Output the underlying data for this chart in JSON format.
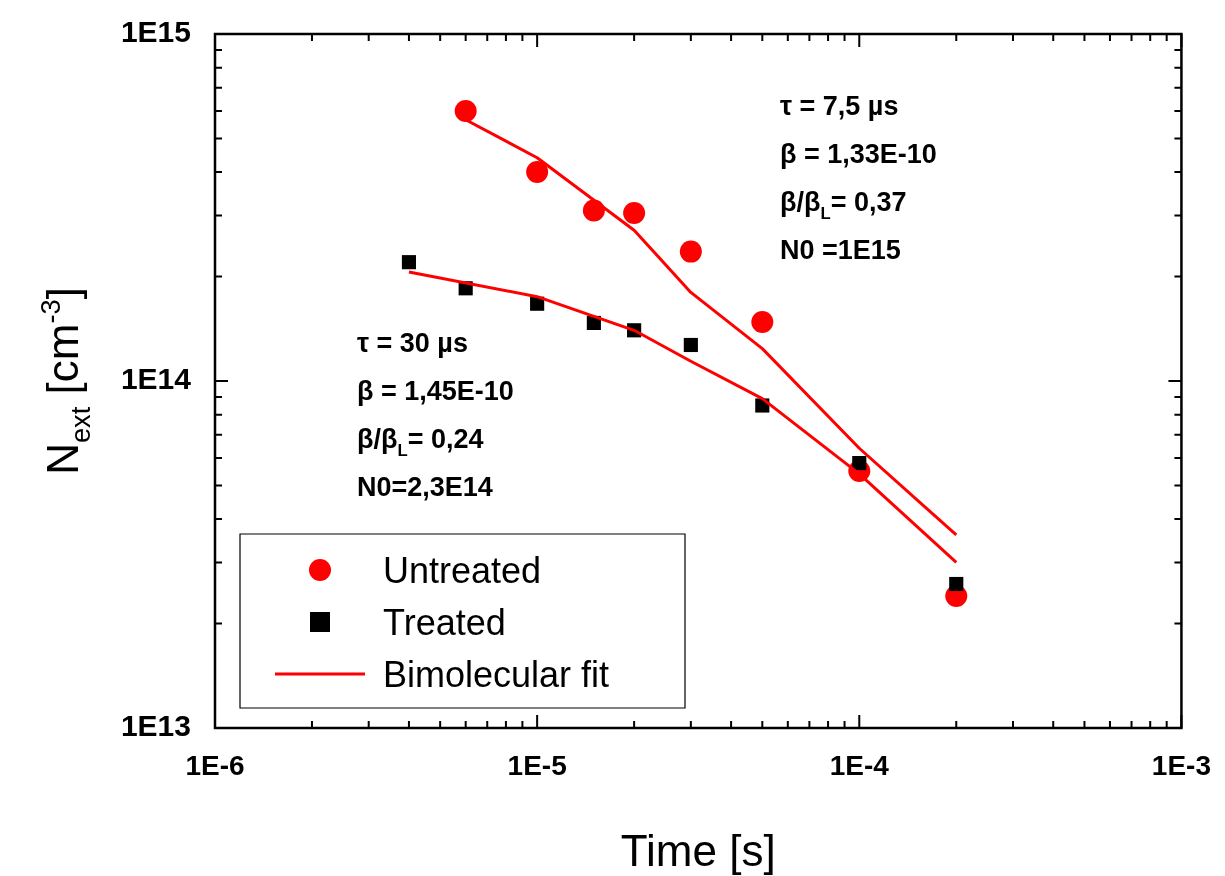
{
  "chart_data": {
    "type": "scatter",
    "xlabel": "Time [s]",
    "ylabel": "N$_{ext}$ [cm$^{-3}$]",
    "log": "xy",
    "grid": false,
    "legend": "bottom left",
    "xlim": [
      1e-06,
      0.001
    ],
    "ylim": [
      10000000000000.0,
      1000000000000000.0
    ],
    "xticks": [
      {
        "value": 1e-06,
        "label": "1E-6"
      },
      {
        "value": 2e-06,
        "label": null
      },
      {
        "value": 3e-06,
        "label": null
      },
      {
        "value": 4e-06,
        "label": null
      },
      {
        "value": 5e-06,
        "label": null
      },
      {
        "value": 6e-06,
        "label": null
      },
      {
        "value": 7e-06,
        "label": null
      },
      {
        "value": 8e-06,
        "label": null
      },
      {
        "value": 9e-06,
        "label": null
      },
      {
        "value": 1e-05,
        "label": "1E-5"
      },
      {
        "value": 2e-05,
        "label": null
      },
      {
        "value": 3e-05,
        "label": null
      },
      {
        "value": 4e-05,
        "label": null
      },
      {
        "value": 5e-05,
        "label": null
      },
      {
        "value": 6e-05,
        "label": null
      },
      {
        "value": 7e-05,
        "label": null
      },
      {
        "value": 8e-05,
        "label": null
      },
      {
        "value": 9e-05,
        "label": null
      },
      {
        "value": 0.0001,
        "label": "1E-4"
      },
      {
        "value": 0.0002,
        "label": null
      },
      {
        "value": 0.0003,
        "label": null
      },
      {
        "value": 0.0004,
        "label": null
      },
      {
        "value": 0.0005,
        "label": null
      },
      {
        "value": 0.0006,
        "label": null
      },
      {
        "value": 0.0007,
        "label": null
      },
      {
        "value": 0.0008,
        "label": null
      },
      {
        "value": 0.0009,
        "label": null
      },
      {
        "value": 0.001,
        "label": "1E-3"
      }
    ],
    "yticks": [
      {
        "value": 10000000000000.0,
        "label": "1E13"
      },
      {
        "value": 20000000000000.0,
        "label": null
      },
      {
        "value": 30000000000000.0,
        "label": null
      },
      {
        "value": 40000000000000.0,
        "label": null
      },
      {
        "value": 50000000000000.0,
        "label": null
      },
      {
        "value": 60000000000000.0,
        "label": null
      },
      {
        "value": 70000000000000.0,
        "label": null
      },
      {
        "value": 80000000000000.0,
        "label": null
      },
      {
        "value": 90000000000000.0,
        "label": null
      },
      {
        "value": 100000000000000.0,
        "label": "1E14"
      },
      {
        "value": 200000000000000.0,
        "label": null
      },
      {
        "value": 300000000000000.0,
        "label": null
      },
      {
        "value": 400000000000000.0,
        "label": null
      },
      {
        "value": 500000000000000.0,
        "label": null
      },
      {
        "value": 600000000000000.0,
        "label": null
      },
      {
        "value": 700000000000000.0,
        "label": null
      },
      {
        "value": 800000000000000.0,
        "label": null
      },
      {
        "value": 900000000000000.0,
        "label": null
      },
      {
        "value": 1000000000000000.0,
        "label": "1E15"
      }
    ],
    "series": [
      {
        "name": "Untreated",
        "type": "scatter",
        "marker": "circle",
        "color": "#ff0000",
        "x": [
          6e-06,
          1e-05,
          1.5e-05,
          2e-05,
          3e-05,
          5e-05,
          0.0001,
          0.0002
        ],
        "values": [
          600000000000000.0,
          400000000000000.0,
          310000000000000.0,
          305000000000000.0,
          236000000000000.0,
          148000000000000.0,
          55000000000000.0,
          24000000000000.0
        ]
      },
      {
        "name": "Treated",
        "type": "scatter",
        "marker": "square",
        "color": "#000000",
        "x": [
          4e-06,
          6e-06,
          1e-05,
          1.5e-05,
          2e-05,
          3e-05,
          5e-05,
          0.0001,
          0.0002
        ],
        "values": [
          220000000000000.0,
          185000000000000.0,
          167000000000000.0,
          147000000000000.0,
          140000000000000.0,
          127000000000000.0,
          85000000000000.0,
          58000000000000.0,
          26000000000000.0
        ]
      },
      {
        "name": "Bimolecular fit",
        "type": "line",
        "marker": "none",
        "line_style": "solid",
        "color": "#ff0000",
        "x": [
          6e-06,
          1e-05,
          2e-05,
          3e-05,
          5e-05,
          0.0001,
          0.0002
        ],
        "values": [
          566000000000000.0,
          440000000000000.0,
          272000000000000.0,
          180000000000000.0,
          124000000000000.0,
          64000000000000.0,
          36000000000000.0
        ]
      },
      {
        "type": "line",
        "marker": "none",
        "line_style": "solid",
        "color": "#ff0000",
        "x": [
          4e-06,
          1e-05,
          2e-05,
          3e-05,
          5e-05,
          0.0001,
          0.0002
        ],
        "values": [
          206000000000000.0,
          175000000000000.0,
          140000000000000.0,
          114000000000000.0,
          89000000000000.0,
          54000000000000.0,
          30000000000000.0
        ]
      }
    ],
    "annotations": [
      "τ = 7,5 µs",
      "β = 1,33E-10",
      "β/β$_{L}$= 0,37",
      "N0 =1E15",
      "τ = 30 µs",
      "β = 1,45E-10",
      "β/β$_{L}$= 0,24",
      "N0=2,3E14"
    ]
  }
}
